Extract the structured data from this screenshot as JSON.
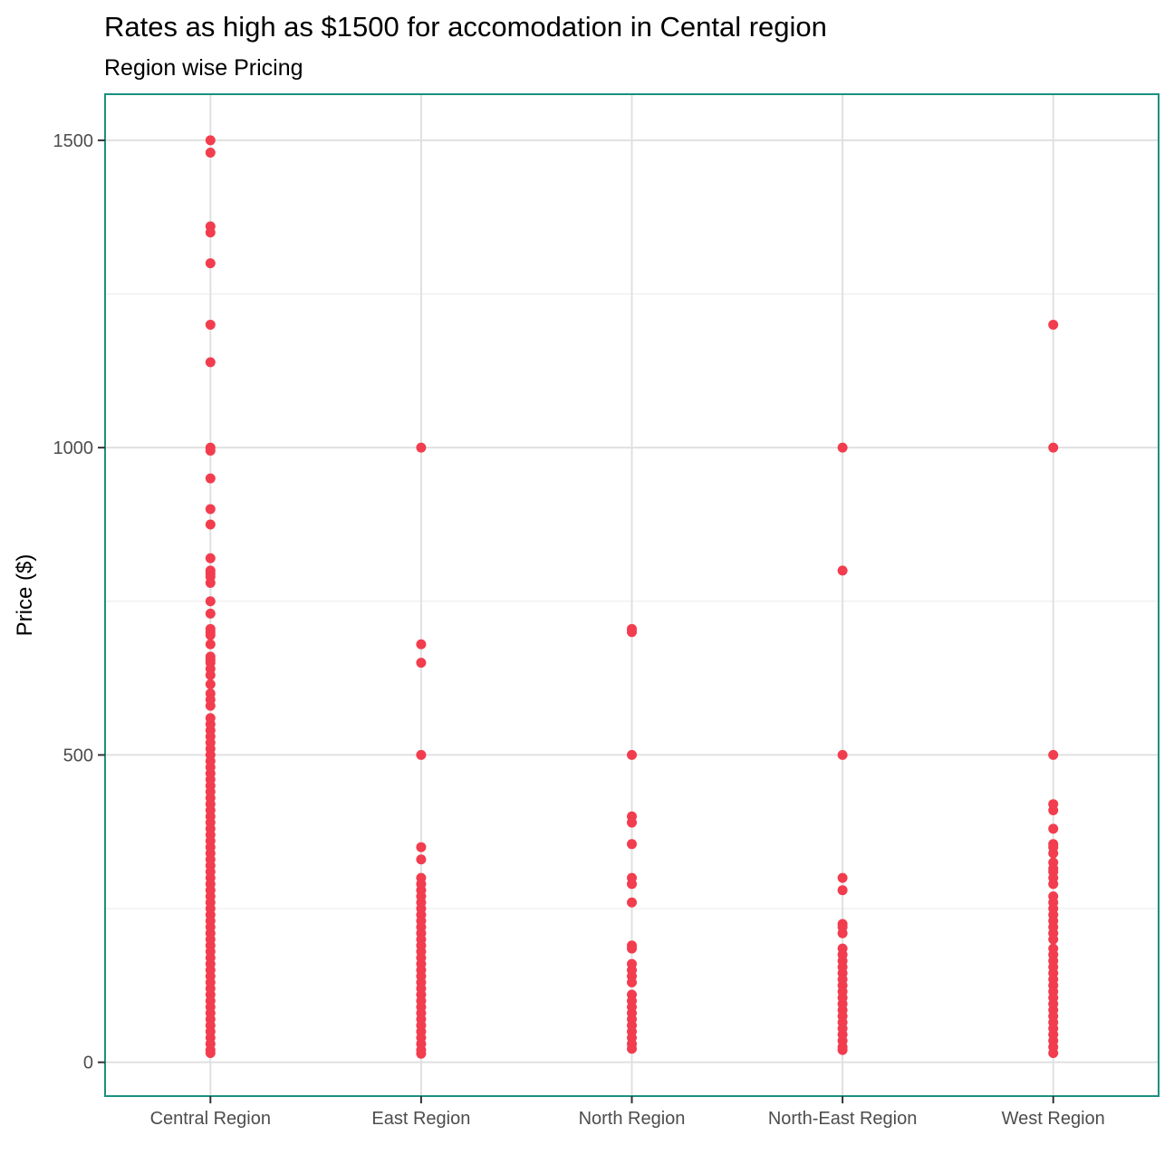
{
  "chart_data": {
    "type": "scatter",
    "title": "Rates as high as $1500 for accomodation in Cental region",
    "subtitle": "Region wise Pricing",
    "xlabel": "",
    "ylabel": "Price ($)",
    "categories": [
      "Central Region",
      "East Region",
      "North Region",
      "North-East Region",
      "West Region"
    ],
    "y_ticks": [
      0,
      500,
      1000,
      1500
    ],
    "y_tick_labels": [
      "0",
      "500",
      "1000",
      "1500"
    ],
    "ylim": [
      -55,
      1575
    ],
    "grid": true,
    "point_color": "#f23d4f",
    "panel_border_color": "#1a9080",
    "series": [
      {
        "category": "Central Region",
        "values": [
          1500,
          1480,
          1360,
          1350,
          1300,
          1200,
          1139,
          1000,
          995,
          950,
          900,
          875,
          820,
          800,
          795,
          790,
          780,
          750,
          730,
          705,
          700,
          695,
          680,
          660,
          655,
          650,
          640,
          630,
          615,
          600,
          590,
          580,
          560,
          550,
          540,
          530,
          520,
          510,
          500,
          490,
          480,
          470,
          460,
          450,
          440,
          430,
          420,
          410,
          400,
          390,
          380,
          370,
          360,
          350,
          340,
          330,
          320,
          310,
          300,
          290,
          280,
          270,
          260,
          250,
          240,
          230,
          220,
          210,
          200,
          190,
          180,
          170,
          160,
          150,
          140,
          130,
          120,
          110,
          100,
          90,
          80,
          70,
          60,
          50,
          40,
          30,
          20,
          15
        ]
      },
      {
        "category": "East Region",
        "values": [
          1000,
          680,
          650,
          500,
          350,
          330,
          300,
          290,
          280,
          270,
          260,
          250,
          240,
          230,
          220,
          210,
          200,
          190,
          180,
          170,
          160,
          150,
          140,
          130,
          120,
          110,
          100,
          90,
          80,
          70,
          60,
          50,
          40,
          30,
          20,
          14
        ]
      },
      {
        "category": "North Region",
        "values": [
          705,
          700,
          500,
          400,
          390,
          355,
          300,
          290,
          260,
          190,
          185,
          160,
          150,
          140,
          130,
          110,
          100,
          90,
          80,
          70,
          60,
          50,
          40,
          30,
          22
        ]
      },
      {
        "category": "North-East Region",
        "values": [
          1000,
          800,
          500,
          300,
          280,
          225,
          220,
          210,
          185,
          175,
          165,
          155,
          145,
          135,
          125,
          115,
          105,
          95,
          85,
          75,
          65,
          55,
          45,
          35,
          25,
          20
        ]
      },
      {
        "category": "West Region",
        "values": [
          1200,
          1000,
          500,
          420,
          410,
          380,
          355,
          350,
          340,
          325,
          315,
          310,
          300,
          290,
          270,
          260,
          250,
          240,
          230,
          220,
          210,
          200,
          185,
          175,
          165,
          155,
          145,
          135,
          125,
          115,
          105,
          95,
          85,
          75,
          65,
          55,
          45,
          35,
          25,
          15
        ]
      }
    ]
  }
}
